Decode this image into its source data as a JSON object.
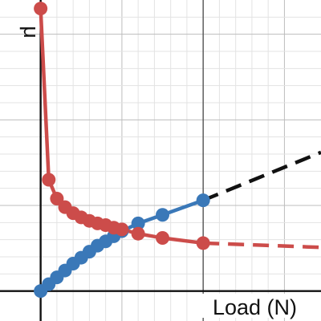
{
  "chart_data": {
    "type": "line",
    "title": "",
    "xlabel": "Load (N)",
    "ylabel": "μ",
    "xlim": [
      -0.5,
      3.45
    ],
    "ylim": [
      -0.35,
      3.4
    ],
    "grid": true,
    "x_gridlines": [
      0,
      0.2,
      0.4,
      0.6,
      0.8,
      1,
      1.2,
      1.4,
      1.6,
      1.8,
      2,
      2.2,
      2.4,
      2.6,
      2.8,
      3
    ],
    "y_gridlines": [
      0,
      0.2,
      0.4,
      0.6,
      0.8,
      1,
      1.2,
      1.4,
      1.6,
      1.8,
      2,
      2.2,
      2.4,
      2.6,
      2.8,
      3,
      3.2
    ],
    "axis_lines": {
      "x": 0,
      "y": 0
    },
    "reference_line_x": 2,
    "series": [
      {
        "color": "#3a78b8",
        "marker": "circle",
        "x": [
          0,
          0.1,
          0.2,
          0.3,
          0.4,
          0.5,
          0.6,
          0.7,
          0.8,
          0.9,
          1,
          1.2,
          1.5,
          2
        ],
        "y": [
          0,
          0.08,
          0.16,
          0.24,
          0.32,
          0.39,
          0.46,
          0.53,
          0.58,
          0.64,
          0.7,
          0.79,
          0.89,
          1.06
        ],
        "extrapolation": {
          "color": "#111111",
          "x": [
            2,
            3.45
          ],
          "y": [
            1.06,
            1.62
          ]
        }
      },
      {
        "color": "#cc4c4a",
        "marker": "circle",
        "x": [
          0,
          0.1,
          0.2,
          0.3,
          0.4,
          0.5,
          0.6,
          0.7,
          0.8,
          0.9,
          1,
          1.2,
          1.5,
          2
        ],
        "y": [
          3.3,
          1.3,
          1.08,
          0.98,
          0.91,
          0.86,
          0.82,
          0.79,
          0.77,
          0.74,
          0.72,
          0.67,
          0.62,
          0.56
        ],
        "extrapolation": {
          "color": "#cc4c4a",
          "x": [
            2,
            3.45
          ],
          "y": [
            0.56,
            0.51
          ]
        }
      }
    ]
  }
}
